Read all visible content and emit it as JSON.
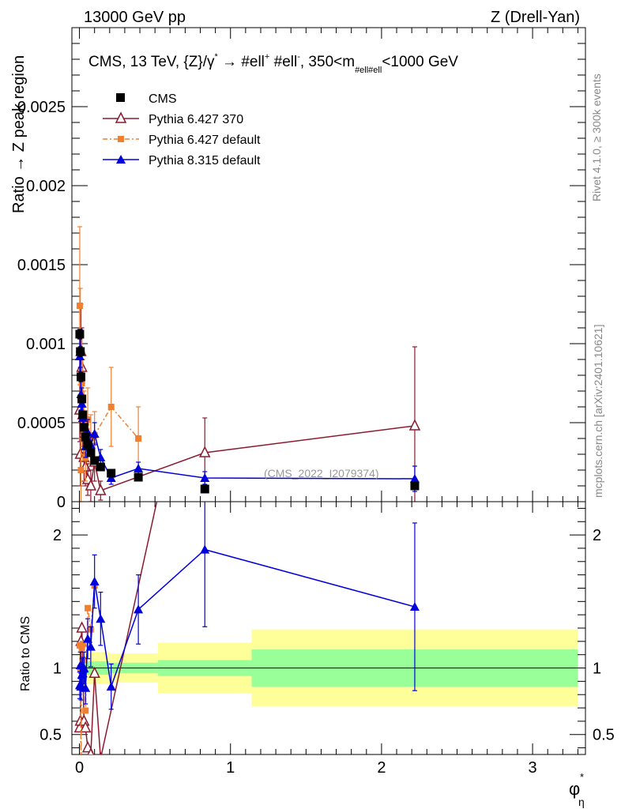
{
  "header": {
    "left": "13000 GeV pp",
    "right": "Z (Drell-Yan)"
  },
  "side_labels": {
    "rivet": "Rivet 4.1.0, ≥ 300k events",
    "mcplots": "mcplots.cern.ch [arXiv:2401.10621]"
  },
  "watermark": "(CMS_2022_I2079374)",
  "chart_data": {
    "type": "scatter",
    "title": "CMS, 13 TeV, {Z}/γ* → #ell⁺ #ell⁻, 350<m_#ell#ell<1000 GeV",
    "title_parts": {
      "prefix": "CMS, 13 TeV, {Z}/γ",
      "star": "*",
      "arrow": " →  #ell",
      "plus": "+",
      "mid": " #ell",
      "minus": "-",
      "after": ", 350<m",
      "sub": "#ell#ell",
      "suffix": "<1000 GeV"
    },
    "xlabel": "φ",
    "xlabel_sup": "*",
    "xlabel_sub": "η",
    "ylabel": "Ratio → Z peak region",
    "ratio_ylabel": "Ratio to CMS",
    "xlim": [
      -0.05,
      3.35
    ],
    "ylim": [
      0,
      0.003
    ],
    "ratio_ylim": [
      0.35,
      2.25
    ],
    "x_ticks": [
      "0",
      "1",
      "2",
      "3"
    ],
    "y_ticks": [
      "0",
      "0.0005",
      "0.001",
      "0.0015",
      "0.002",
      "0.0025"
    ],
    "ratio_ticks": [
      "0.5",
      "1",
      "2"
    ],
    "legend": [
      "CMS",
      "Pythia 6.427 370",
      "Pythia 6.427 default",
      "Pythia 8.315 default"
    ],
    "series": [
      {
        "name": "CMS",
        "color": "#000000",
        "marker": "square",
        "x": [
          0.002,
          0.006,
          0.01,
          0.016,
          0.022,
          0.03,
          0.04,
          0.055,
          0.075,
          0.1,
          0.14,
          0.21,
          0.39,
          0.83,
          2.22
        ],
        "y": [
          0.00106,
          0.00095,
          0.00079,
          0.00065,
          0.00055,
          0.00047,
          0.00041,
          0.00036,
          0.00031,
          0.00026,
          0.00022,
          0.00018,
          0.000155,
          8e-05,
          0.0001
        ],
        "yerr": [
          3e-05,
          3e-05,
          3e-05,
          2e-05,
          2e-05,
          2e-05,
          2e-05,
          2e-05,
          1e-05,
          1e-05,
          1e-05,
          1e-05,
          1e-05,
          1e-05,
          1e-05
        ]
      },
      {
        "name": "Pythia 6.427 370",
        "color": "#8b1a2e",
        "marker": "triangle-open",
        "x": [
          0.002,
          0.006,
          0.01,
          0.016,
          0.022,
          0.03,
          0.04,
          0.055,
          0.075,
          0.1,
          0.14,
          0.83,
          2.22
        ],
        "y": [
          0.00058,
          0.0003,
          0.00095,
          0.00085,
          0.00055,
          0.00028,
          0.00022,
          0.00014,
          0.0001,
          0.00025,
          7e-05,
          0.00031,
          0.00048
        ],
        "yerr": [
          0.0002,
          0.0002,
          0.0003,
          0.00025,
          0.0002,
          0.00015,
          0.00012,
          0.0001,
          0.0001,
          0.00012,
          6e-05,
          0.00022,
          0.0005
        ]
      },
      {
        "name": "Pythia 6.427 default",
        "color": "#f08030",
        "marker": "square-small",
        "x": [
          0.002,
          0.006,
          0.01,
          0.016,
          0.022,
          0.03,
          0.04,
          0.055,
          0.075,
          0.1,
          0.21,
          0.39
        ],
        "y": [
          0.00124,
          0.00095,
          0.0002,
          0.00075,
          0.00065,
          0.0005,
          0.00028,
          0.00052,
          0.0004,
          0.00042,
          0.0006,
          0.0004
        ],
        "yerr": [
          0.0005,
          0.0004,
          0.0002,
          0.0003,
          0.00025,
          0.0002,
          0.00015,
          0.0002,
          0.00015,
          0.00015,
          0.00025,
          0.0002
        ]
      },
      {
        "name": "Pythia 8.315 default",
        "color": "#0000dd",
        "marker": "triangle",
        "x": [
          0.002,
          0.006,
          0.01,
          0.016,
          0.022,
          0.03,
          0.04,
          0.055,
          0.075,
          0.1,
          0.14,
          0.21,
          0.39,
          0.83,
          2.22
        ],
        "y": [
          0.00092,
          0.00097,
          0.00068,
          0.00062,
          0.00053,
          0.00047,
          0.00035,
          0.00044,
          0.00036,
          0.00043,
          0.00028,
          0.00015,
          0.00021,
          0.00015,
          0.000145
        ],
        "yerr": [
          0.00012,
          0.00012,
          0.0001,
          0.0001,
          8e-05,
          8e-05,
          7e-05,
          8e-05,
          6e-05,
          7e-05,
          5e-05,
          4e-05,
          4e-05,
          4e-05,
          8e-05
        ]
      }
    ],
    "ratio_series": [
      {
        "name": "Pythia 6.427 370",
        "color": "#8b1a2e",
        "x": [
          0.002,
          0.006,
          0.01,
          0.016,
          0.022,
          0.03,
          0.04,
          0.055,
          0.075,
          0.1,
          0.14,
          0.83
        ],
        "y": [
          0.55,
          0.6,
          1.2,
          1.3,
          1.0,
          0.6,
          0.55,
          0.4,
          0.35,
          0.96,
          0.32,
          3.9
        ]
      },
      {
        "name": "Pythia 6.427 default",
        "color": "#f08030",
        "x": [
          0.002,
          0.006,
          0.01,
          0.016,
          0.022,
          0.03,
          0.04,
          0.055,
          0.075,
          0.1
        ],
        "y": [
          1.17,
          1.0,
          0.25,
          1.15,
          1.18,
          1.06,
          0.68,
          1.45,
          1.29,
          1.62
        ]
      },
      {
        "name": "Pythia 8.315 default",
        "color": "#0000dd",
        "x": [
          0.002,
          0.006,
          0.01,
          0.016,
          0.022,
          0.03,
          0.04,
          0.055,
          0.075,
          0.1,
          0.14,
          0.21,
          0.39,
          0.83,
          2.22
        ],
        "y": [
          0.87,
          1.02,
          0.86,
          0.95,
          0.96,
          1.0,
          0.85,
          1.22,
          1.16,
          1.65,
          1.37,
          0.86,
          1.44,
          1.89,
          1.46
        ],
        "yerr": [
          0.1,
          0.1,
          0.1,
          0.12,
          0.12,
          0.12,
          0.12,
          0.15,
          0.15,
          0.2,
          0.2,
          0.17,
          0.26,
          0.58,
          0.63
        ]
      }
    ],
    "bands": {
      "edges": [
        0.0,
        0.1,
        0.2,
        0.52,
        1.14,
        3.3
      ],
      "stat_half": [
        0.05,
        0.05,
        0.04,
        0.06,
        0.14
      ],
      "total_half": [
        0.12,
        0.12,
        0.11,
        0.19,
        0.29
      ],
      "stat_color": "#99ff99",
      "total_color": "#ffff99"
    }
  }
}
